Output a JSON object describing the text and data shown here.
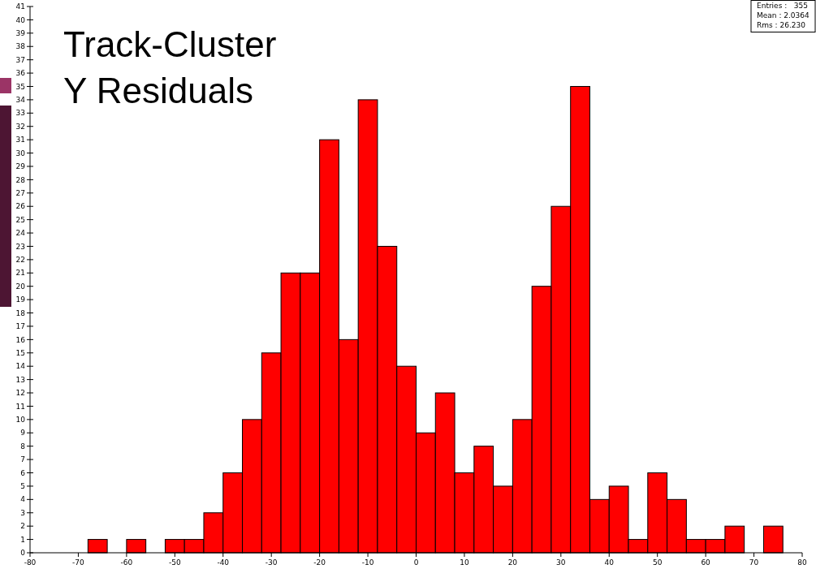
{
  "chart_data": {
    "type": "histogram",
    "title": "Track-Cluster\nY Residuals",
    "bins": [
      -80,
      -76,
      -72,
      -68,
      -64,
      -60,
      -56,
      -52,
      -48,
      -44,
      -40,
      -36,
      -32,
      -28,
      -24,
      -20,
      -16,
      -12,
      -8,
      -4,
      0,
      4,
      8,
      12,
      16,
      20,
      24,
      28,
      32,
      36,
      40,
      44,
      48,
      52,
      56,
      60,
      64,
      68,
      72,
      76,
      80
    ],
    "values": [
      0,
      0,
      0,
      1,
      0,
      1,
      0,
      1,
      1,
      3,
      6,
      10,
      15,
      21,
      21,
      31,
      16,
      34,
      23,
      14,
      9,
      12,
      6,
      8,
      5,
      10,
      20,
      26,
      35,
      4,
      5,
      1,
      6,
      4,
      1,
      1,
      2,
      0,
      2,
      0
    ],
    "color": "#ff0000",
    "xlim": [
      -80,
      80
    ],
    "xticks": [
      -80,
      -70,
      -60,
      -50,
      -40,
      -30,
      -20,
      -10,
      0,
      10,
      20,
      30,
      40,
      50,
      60,
      70,
      80
    ],
    "ylim": [
      0,
      41
    ],
    "yticks": [
      0,
      1,
      2,
      3,
      4,
      5,
      6,
      7,
      8,
      9,
      10,
      11,
      12,
      13,
      14,
      15,
      16,
      17,
      18,
      19,
      20,
      21,
      22,
      23,
      24,
      25,
      26,
      27,
      28,
      29,
      30,
      31,
      32,
      33,
      34,
      35,
      36,
      37,
      38,
      39,
      40,
      41
    ],
    "grid": false,
    "annotations": [
      "Entries :   355",
      "Mean : 2.0364",
      "Rms : 26.230"
    ]
  }
}
